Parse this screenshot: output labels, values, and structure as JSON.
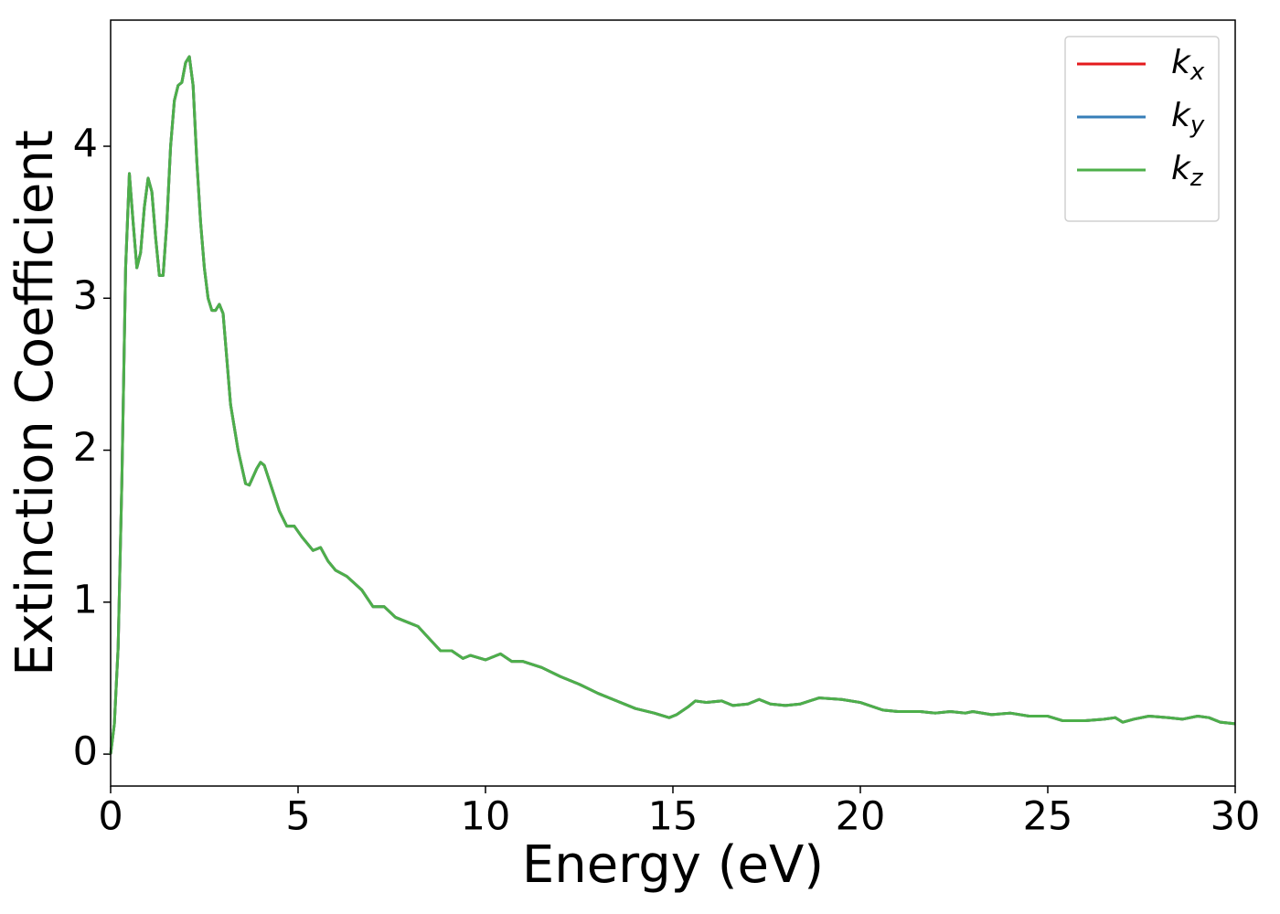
{
  "chart_data": {
    "type": "line",
    "xlabel": "Energy (eV)",
    "ylabel": "Extinction Coefficient",
    "x": [
      0,
      0.1,
      0.2,
      0.3,
      0.4,
      0.5,
      0.6,
      0.7,
      0.8,
      0.9,
      1.0,
      1.1,
      1.2,
      1.3,
      1.4,
      1.5,
      1.6,
      1.7,
      1.8,
      1.9,
      2.0,
      2.1,
      2.2,
      2.3,
      2.4,
      2.5,
      2.6,
      2.7,
      2.8,
      2.9,
      3.0,
      3.1,
      3.2,
      3.4,
      3.6,
      3.7,
      3.9,
      4.0,
      4.1,
      4.3,
      4.5,
      4.7,
      4.9,
      5.1,
      5.4,
      5.6,
      5.8,
      6.0,
      6.3,
      6.7,
      7.0,
      7.3,
      7.6,
      7.9,
      8.2,
      8.5,
      8.8,
      9.1,
      9.4,
      9.6,
      10.0,
      10.4,
      10.7,
      11.0,
      11.5,
      12.0,
      12.5,
      13.0,
      13.5,
      14.0,
      14.5,
      14.9,
      15.1,
      15.4,
      15.6,
      15.9,
      16.3,
      16.6,
      17.0,
      17.3,
      17.6,
      18.0,
      18.4,
      18.9,
      19.5,
      20.0,
      20.6,
      21.0,
      21.6,
      22.0,
      22.4,
      22.8,
      23.0,
      23.5,
      24.0,
      24.5,
      25.0,
      25.4,
      26.0,
      26.5,
      26.8,
      27.0,
      27.3,
      27.7,
      28.2,
      28.6,
      29.0,
      29.3,
      29.6,
      30.0
    ],
    "series": [
      {
        "name": "kx",
        "color": "#e41a1c",
        "values": [
          0,
          0.2,
          0.7,
          1.8,
          3.2,
          3.82,
          3.5,
          3.2,
          3.3,
          3.6,
          3.79,
          3.7,
          3.4,
          3.15,
          3.15,
          3.5,
          4.0,
          4.3,
          4.4,
          4.42,
          4.55,
          4.59,
          4.4,
          3.9,
          3.5,
          3.2,
          3.0,
          2.92,
          2.92,
          2.96,
          2.9,
          2.6,
          2.3,
          2.0,
          1.78,
          1.77,
          1.88,
          1.92,
          1.9,
          1.75,
          1.6,
          1.5,
          1.5,
          1.43,
          1.34,
          1.36,
          1.27,
          1.21,
          1.17,
          1.08,
          0.97,
          0.97,
          0.9,
          0.87,
          0.84,
          0.76,
          0.68,
          0.68,
          0.63,
          0.65,
          0.62,
          0.66,
          0.61,
          0.61,
          0.57,
          0.51,
          0.46,
          0.4,
          0.35,
          0.3,
          0.27,
          0.24,
          0.26,
          0.31,
          0.35,
          0.34,
          0.35,
          0.32,
          0.33,
          0.36,
          0.33,
          0.32,
          0.33,
          0.37,
          0.36,
          0.34,
          0.29,
          0.28,
          0.28,
          0.27,
          0.28,
          0.27,
          0.28,
          0.26,
          0.27,
          0.25,
          0.25,
          0.22,
          0.22,
          0.23,
          0.24,
          0.21,
          0.23,
          0.25,
          0.24,
          0.23,
          0.25,
          0.24,
          0.21,
          0.2
        ]
      },
      {
        "name": "ky",
        "color": "#377eb8",
        "values": [
          0,
          0.2,
          0.7,
          1.8,
          3.2,
          3.82,
          3.5,
          3.2,
          3.3,
          3.6,
          3.79,
          3.7,
          3.4,
          3.15,
          3.15,
          3.5,
          4.0,
          4.3,
          4.4,
          4.42,
          4.55,
          4.59,
          4.4,
          3.9,
          3.5,
          3.2,
          3.0,
          2.92,
          2.92,
          2.96,
          2.9,
          2.6,
          2.3,
          2.0,
          1.78,
          1.77,
          1.88,
          1.92,
          1.9,
          1.75,
          1.6,
          1.5,
          1.5,
          1.43,
          1.34,
          1.36,
          1.27,
          1.21,
          1.17,
          1.08,
          0.97,
          0.97,
          0.9,
          0.87,
          0.84,
          0.76,
          0.68,
          0.68,
          0.63,
          0.65,
          0.62,
          0.66,
          0.61,
          0.61,
          0.57,
          0.51,
          0.46,
          0.4,
          0.35,
          0.3,
          0.27,
          0.24,
          0.26,
          0.31,
          0.35,
          0.34,
          0.35,
          0.32,
          0.33,
          0.36,
          0.33,
          0.32,
          0.33,
          0.37,
          0.36,
          0.34,
          0.29,
          0.28,
          0.28,
          0.27,
          0.28,
          0.27,
          0.28,
          0.26,
          0.27,
          0.25,
          0.25,
          0.22,
          0.22,
          0.23,
          0.24,
          0.21,
          0.23,
          0.25,
          0.24,
          0.23,
          0.25,
          0.24,
          0.21,
          0.2
        ]
      },
      {
        "name": "kz",
        "color": "#4daf4a",
        "values": [
          0,
          0.2,
          0.7,
          1.8,
          3.2,
          3.82,
          3.5,
          3.2,
          3.3,
          3.6,
          3.79,
          3.7,
          3.4,
          3.15,
          3.15,
          3.5,
          4.0,
          4.3,
          4.4,
          4.42,
          4.55,
          4.59,
          4.4,
          3.9,
          3.5,
          3.2,
          3.0,
          2.92,
          2.92,
          2.96,
          2.9,
          2.6,
          2.3,
          2.0,
          1.78,
          1.77,
          1.88,
          1.92,
          1.9,
          1.75,
          1.6,
          1.5,
          1.5,
          1.43,
          1.34,
          1.36,
          1.27,
          1.21,
          1.17,
          1.08,
          0.97,
          0.97,
          0.9,
          0.87,
          0.84,
          0.76,
          0.68,
          0.68,
          0.63,
          0.65,
          0.62,
          0.66,
          0.61,
          0.61,
          0.57,
          0.51,
          0.46,
          0.4,
          0.35,
          0.3,
          0.27,
          0.24,
          0.26,
          0.31,
          0.35,
          0.34,
          0.35,
          0.32,
          0.33,
          0.36,
          0.33,
          0.32,
          0.33,
          0.37,
          0.36,
          0.34,
          0.29,
          0.28,
          0.28,
          0.27,
          0.28,
          0.27,
          0.28,
          0.26,
          0.27,
          0.25,
          0.25,
          0.22,
          0.22,
          0.23,
          0.24,
          0.21,
          0.23,
          0.25,
          0.24,
          0.23,
          0.25,
          0.24,
          0.21,
          0.2
        ]
      }
    ],
    "xlim": [
      0,
      30
    ],
    "xticks": [
      0,
      5,
      10,
      15,
      20,
      25,
      30
    ],
    "ylim": [
      -0.21,
      4.83
    ],
    "yticks": [
      0,
      1,
      2,
      3,
      4
    ],
    "grid": false,
    "legend": "upper right"
  }
}
